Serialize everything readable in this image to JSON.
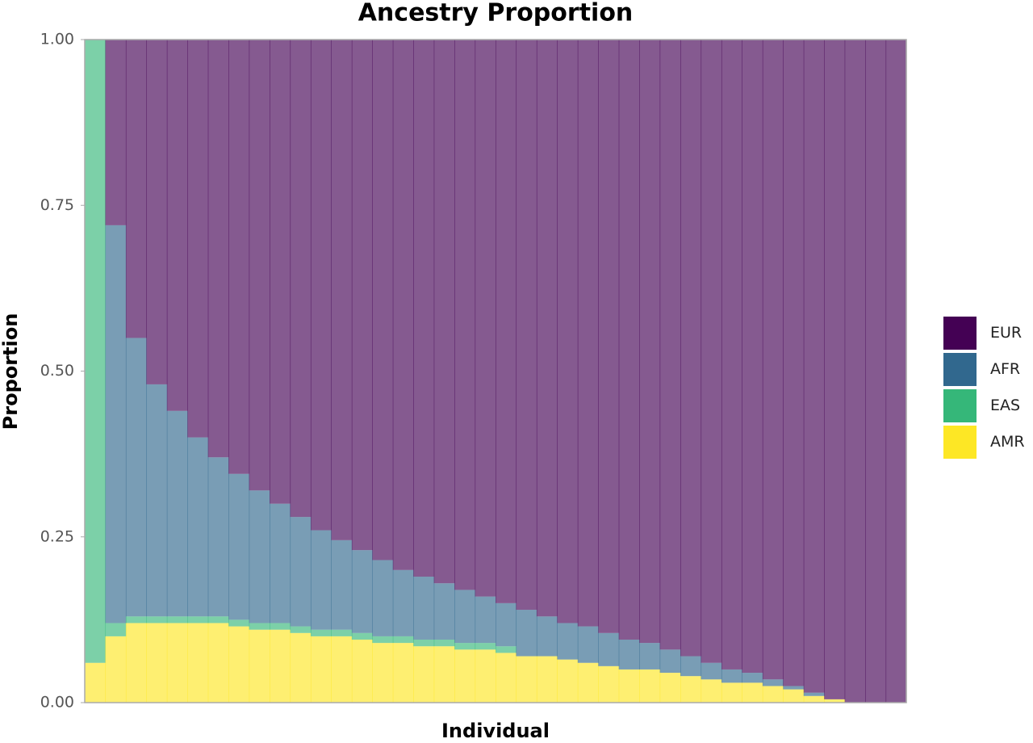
{
  "chart_data": {
    "type": "bar",
    "stacked": true,
    "title": "Ancestry Proportion",
    "x_label": "Individual",
    "y_label": "Proportion",
    "categories": [
      null,
      null,
      null,
      null,
      null,
      null,
      null,
      null,
      null,
      null,
      null,
      null,
      null,
      null,
      null,
      null,
      null,
      null,
      null,
      null,
      null,
      null,
      null,
      null,
      null,
      null,
      null,
      null,
      null,
      null,
      null,
      null,
      null,
      null,
      null,
      null,
      null,
      null,
      null,
      null
    ],
    "ylim": [
      0,
      1
    ],
    "yticks": [
      {
        "value": 0,
        "label": "0.00"
      },
      {
        "value": 0.25,
        "label": "0.25"
      },
      {
        "value": 0.5,
        "label": "0.50"
      },
      {
        "value": 0.75,
        "label": "0.75"
      },
      {
        "value": 1,
        "label": "1.00"
      }
    ],
    "alpha": 0.65,
    "legend": "right",
    "series": [
      {
        "name": "EUR",
        "color": "#440154",
        "values": [
          0,
          0.28,
          0.45,
          0.52,
          0.56,
          0.6,
          0.63,
          0.655,
          0.68,
          0.7,
          0.72,
          0.74,
          0.755,
          0.77,
          0.785,
          0.8,
          0.81,
          0.82,
          0.83,
          0.84,
          0.85,
          0.86,
          0.87,
          0.88,
          0.885,
          0.895,
          0.905,
          0.91,
          0.92,
          0.93,
          0.94,
          0.95,
          0.955,
          0.965,
          0.975,
          0.985,
          0.995,
          1,
          1,
          1
        ]
      },
      {
        "name": "AFR",
        "color": "#31688e",
        "values": [
          0,
          0.6,
          0.42,
          0.35,
          0.31,
          0.27,
          0.24,
          0.22,
          0.2,
          0.18,
          0.165,
          0.15,
          0.135,
          0.125,
          0.115,
          0.1,
          0.095,
          0.085,
          0.08,
          0.07,
          0.065,
          0.07,
          0.06,
          0.055,
          0.055,
          0.05,
          0.045,
          0.04,
          0.035,
          0.03,
          0.025,
          0.02,
          0.015,
          0.01,
          0.005,
          0.005,
          0,
          0,
          0,
          0
        ]
      },
      {
        "name": "EAS",
        "color": "#35b779",
        "values": [
          0.94,
          0.02,
          0.01,
          0.01,
          0.01,
          0.01,
          0.01,
          0.01,
          0.01,
          0.01,
          0.01,
          0.01,
          0.01,
          0.01,
          0.01,
          0.01,
          0.01,
          0.01,
          0.01,
          0.01,
          0.01,
          0,
          0,
          0,
          0,
          0,
          0,
          0,
          0,
          0,
          0,
          0,
          0,
          0,
          0,
          0,
          0,
          0,
          0,
          0
        ]
      },
      {
        "name": "AMR",
        "color": "#fde725",
        "values": [
          0.06,
          0.1,
          0.12,
          0.12,
          0.12,
          0.12,
          0.12,
          0.115,
          0.11,
          0.11,
          0.105,
          0.1,
          0.1,
          0.095,
          0.09,
          0.09,
          0.085,
          0.085,
          0.08,
          0.08,
          0.075,
          0.07,
          0.07,
          0.065,
          0.06,
          0.055,
          0.05,
          0.05,
          0.045,
          0.04,
          0.035,
          0.03,
          0.03,
          0.025,
          0.02,
          0.01,
          0.005,
          0,
          0,
          0
        ]
      }
    ]
  }
}
